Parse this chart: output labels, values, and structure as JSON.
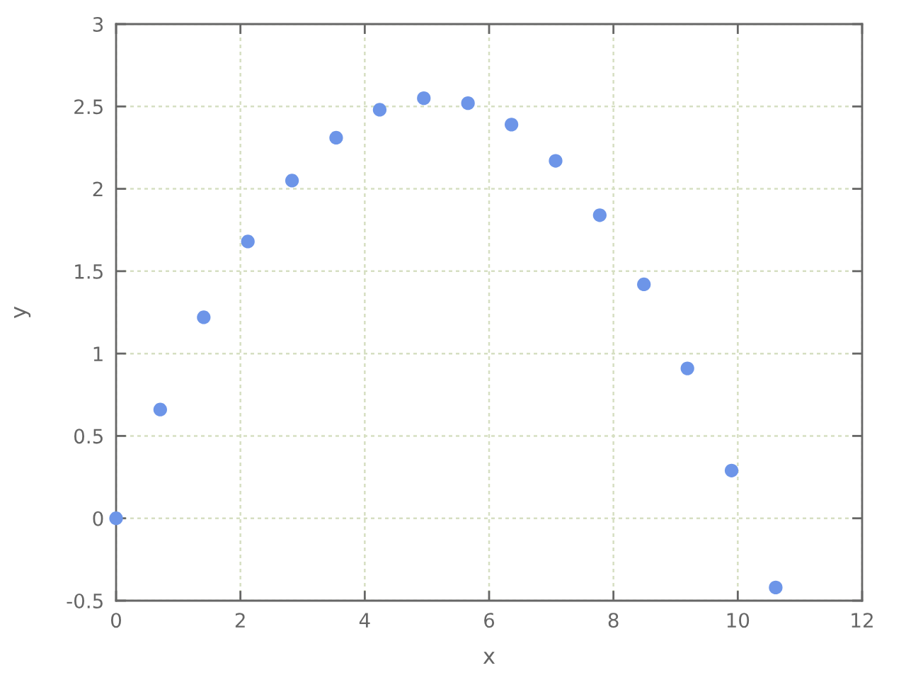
{
  "chart_data": {
    "type": "scatter",
    "xlabel": "x",
    "ylabel": "y",
    "x": [
      0,
      0.71,
      1.41,
      2.12,
      2.83,
      3.54,
      4.24,
      4.95,
      5.66,
      6.36,
      7.07,
      7.78,
      8.49,
      9.19,
      9.9,
      10.61
    ],
    "series": [
      {
        "color": "#6d95e8",
        "values": [
          0,
          0.66,
          1.22,
          1.68,
          2.05,
          2.31,
          2.48,
          2.55,
          2.52,
          2.39,
          2.17,
          1.84,
          1.42,
          0.91,
          0.29,
          -0.42
        ]
      }
    ],
    "xlim": [
      0,
      12
    ],
    "ylim": [
      -0.5,
      3
    ],
    "xticks": [
      0,
      2,
      4,
      6,
      8,
      10,
      12
    ],
    "yticks": [
      -0.5,
      0,
      0.5,
      1,
      1.5,
      2,
      2.5,
      3
    ],
    "grid": true,
    "marker": "circle"
  }
}
